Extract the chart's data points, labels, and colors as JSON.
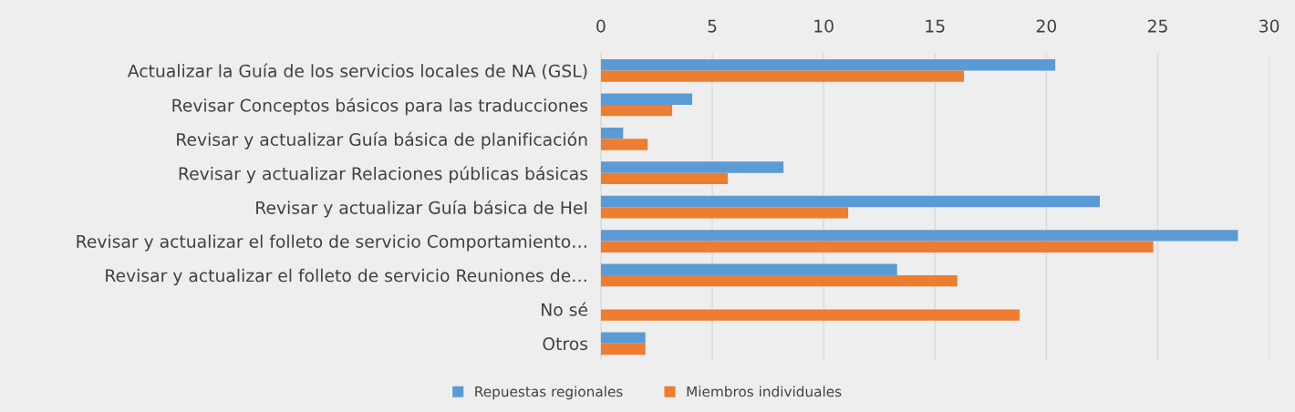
{
  "chart_data": {
    "type": "bar",
    "orientation": "horizontal",
    "categories": [
      "Actualizar la Guía de los servicios locales de NA (GSL)",
      "Revisar Conceptos básicos para las traducciones",
      "Revisar y actualizar Guía básica de planificación",
      "Revisar y actualizar Relaciones públicas básicas",
      "Revisar y actualizar Guía básica de HeI",
      "Revisar y actualizar el folleto de servicio Comportamiento…",
      "Revisar y actualizar el folleto de servicio Reuniones de…",
      "No sé",
      "Otros"
    ],
    "series": [
      {
        "name": "Repuestas regionales",
        "color": "#5b9bd5",
        "values": [
          20.4,
          4.1,
          1.0,
          8.2,
          22.4,
          28.6,
          13.3,
          null,
          2.0
        ]
      },
      {
        "name": "Miembros individuales",
        "color": "#ed7d31",
        "values": [
          16.3,
          3.2,
          2.1,
          5.7,
          11.1,
          24.8,
          16.0,
          18.8,
          2.0
        ]
      }
    ],
    "xlim": [
      0,
      30
    ],
    "xticks": [
      0,
      5,
      10,
      15,
      20,
      25,
      30
    ],
    "grid": "x",
    "legend": "bottom"
  }
}
